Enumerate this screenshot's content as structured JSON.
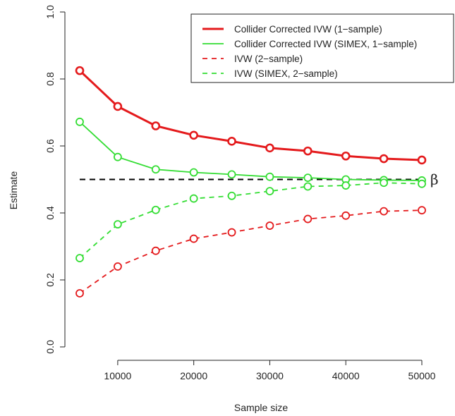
{
  "chart_data": {
    "type": "line",
    "xlabel": "Sample size",
    "ylabel": "Estimate",
    "xlim": [
      5000,
      50000
    ],
    "ylim": [
      0,
      1
    ],
    "x_ticks": [
      10000,
      20000,
      30000,
      40000,
      50000
    ],
    "x_tick_labels": [
      "10000",
      "20000",
      "30000",
      "40000",
      "50000"
    ],
    "y_ticks": [
      0,
      0.2,
      0.4,
      0.6,
      0.8,
      1
    ],
    "y_tick_labels": [
      "0.0",
      "0.2",
      "0.4",
      "0.6",
      "0.8",
      "1.0"
    ],
    "x": [
      5000,
      10000,
      15000,
      20000,
      25000,
      30000,
      35000,
      40000,
      45000,
      50000
    ],
    "series": [
      {
        "name": "Collider Corrected IVW (1−sample)",
        "color": "#e41a1c",
        "line_style": "solid",
        "line_width": "thick",
        "values": [
          0.825,
          0.718,
          0.66,
          0.632,
          0.614,
          0.594,
          0.585,
          0.57,
          0.562,
          0.558
        ]
      },
      {
        "name": "Collider Corrected IVW (SIMEX, 1−sample)",
        "color": "#33dd33",
        "line_style": "solid",
        "line_width": "normal",
        "values": [
          0.672,
          0.567,
          0.53,
          0.521,
          0.515,
          0.508,
          0.505,
          0.5,
          0.498,
          0.497
        ]
      },
      {
        "name": "IVW (2−sample)",
        "color": "#e41a1c",
        "line_style": "dashed",
        "line_width": "normal",
        "values": [
          0.16,
          0.24,
          0.287,
          0.323,
          0.342,
          0.362,
          0.382,
          0.392,
          0.405,
          0.408
        ]
      },
      {
        "name": "IVW (SIMEX, 2−sample)",
        "color": "#33dd33",
        "line_style": "dashed",
        "line_width": "normal",
        "values": [
          0.265,
          0.366,
          0.409,
          0.443,
          0.451,
          0.465,
          0.479,
          0.482,
          0.49,
          0.487
        ]
      }
    ],
    "reference_line": {
      "y": 0.5,
      "label": "β",
      "color": "#000000",
      "line_style": "dashed"
    },
    "legend": {
      "placement": "top-right"
    },
    "grid": false
  }
}
